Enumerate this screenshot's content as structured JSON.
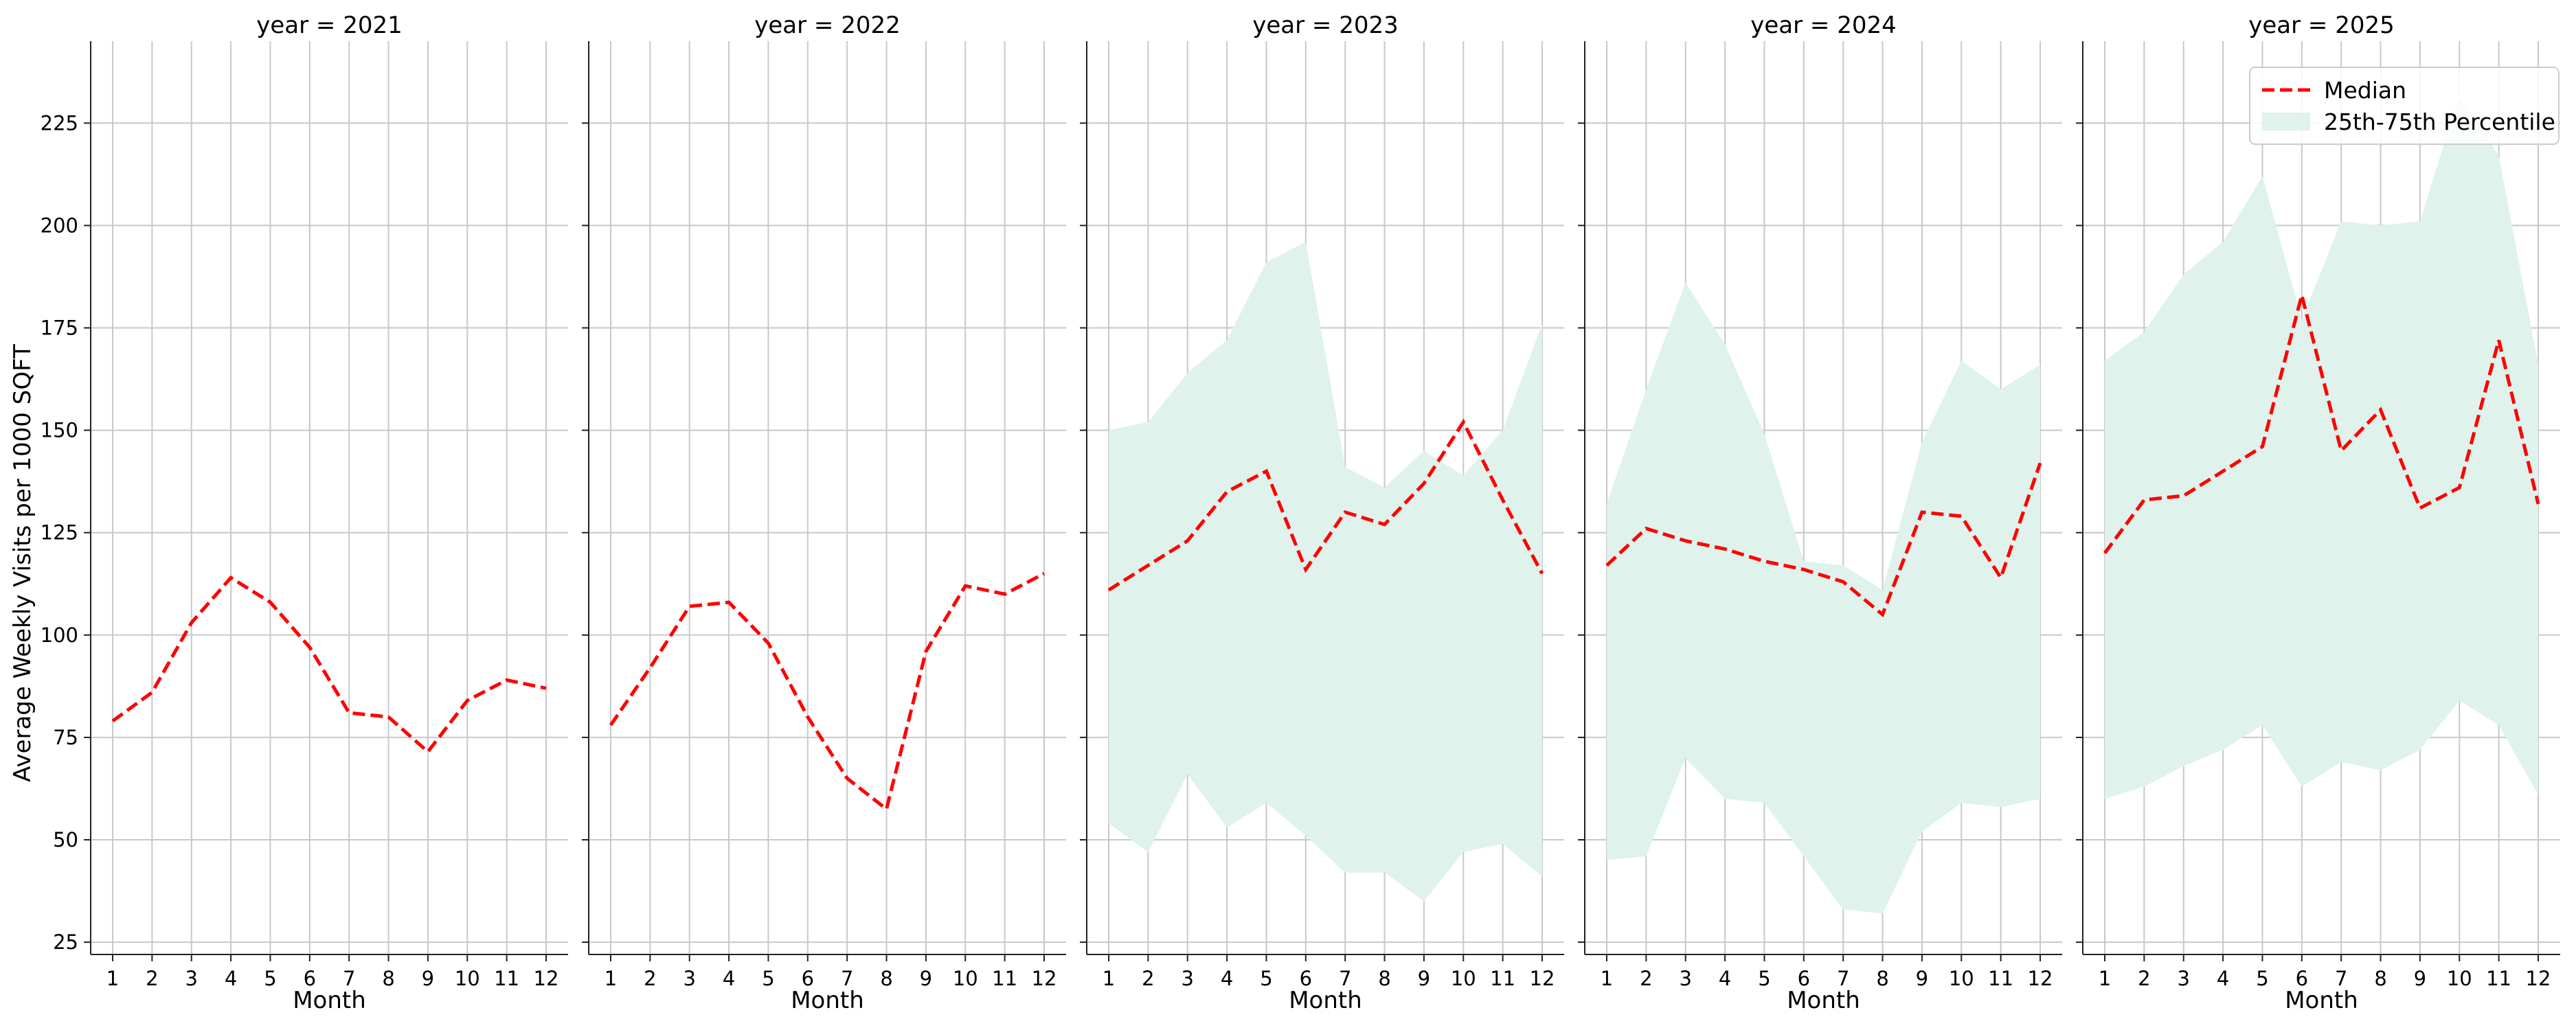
{
  "chart_data": {
    "type": "line",
    "ylabel": "Average Weekly Visits per 1000 SQFT",
    "xlabel": "Month",
    "x": [
      1,
      2,
      3,
      4,
      5,
      6,
      7,
      8,
      9,
      10,
      11,
      12
    ],
    "x_ticks": [
      "1",
      "2",
      "3",
      "4",
      "5",
      "6",
      "7",
      "8",
      "9",
      "10",
      "11",
      "12"
    ],
    "ylim": [
      22,
      245
    ],
    "y_ticks": [
      25,
      50,
      75,
      100,
      125,
      150,
      175,
      200,
      225
    ],
    "grid": true,
    "legend": {
      "placement": "top-right of last panel",
      "entries": [
        "Median",
        "25th-75th Percentile"
      ]
    },
    "colors": {
      "median": "#ff0000",
      "band": "#dff2ec",
      "grid": "#c8c8c8"
    },
    "panels": [
      {
        "title": "year = 2021",
        "median": [
          79,
          86,
          103,
          114,
          108,
          97,
          81,
          80,
          71.5,
          84,
          89,
          87
        ]
      },
      {
        "title": "year = 2022",
        "median": [
          78,
          92,
          107,
          108,
          98,
          80,
          65,
          57.5,
          96,
          112,
          110,
          115
        ]
      },
      {
        "title": "year = 2023",
        "median": [
          111,
          117,
          123,
          135,
          140,
          116,
          130,
          127,
          137,
          152,
          133,
          115
        ],
        "p25": [
          54,
          47,
          66,
          53,
          59,
          51,
          42,
          42,
          35,
          47,
          49,
          41
        ],
        "p75": [
          150,
          152,
          164,
          172,
          191,
          196,
          141,
          136,
          145,
          139,
          150,
          176
        ]
      },
      {
        "title": "year = 2024",
        "median": [
          117,
          126,
          123,
          121,
          118,
          116,
          113,
          105,
          130,
          129,
          114,
          142
        ],
        "p25": [
          45,
          46,
          70,
          60,
          59,
          46,
          33,
          32,
          52,
          59,
          58,
          60
        ],
        "p75": [
          132,
          160,
          186,
          171,
          149,
          118,
          117,
          111,
          147,
          167,
          160,
          166
        ]
      },
      {
        "title": "year = 2025",
        "median": [
          120,
          133,
          134,
          140,
          146,
          183,
          145,
          155,
          131,
          136,
          172,
          132
        ],
        "p25": [
          60,
          63,
          68,
          72,
          78,
          63,
          69,
          67,
          72,
          84,
          78,
          61
        ],
        "p75": [
          167,
          174,
          188,
          196,
          212,
          177,
          201,
          200,
          201,
          232,
          217,
          166
        ]
      }
    ]
  }
}
